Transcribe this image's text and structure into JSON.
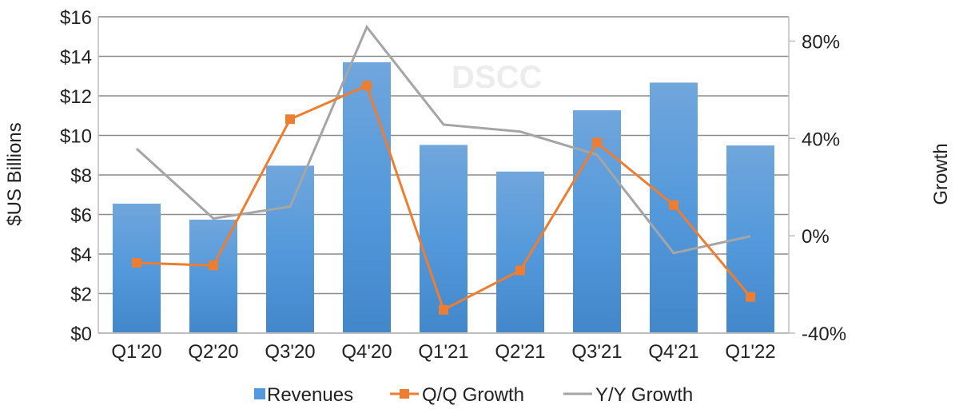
{
  "chart_data": {
    "type": "bar+line",
    "categories": [
      "Q1'20",
      "Q2'20",
      "Q3'20",
      "Q4'20",
      "Q1'21",
      "Q2'21",
      "Q3'21",
      "Q4'21",
      "Q1'22"
    ],
    "series": [
      {
        "name": "Revenues",
        "type": "bar",
        "axis": "left",
        "color": "#4a90d6",
        "values": [
          6.55,
          5.74,
          8.47,
          13.7,
          9.52,
          8.17,
          11.27,
          12.67,
          9.49
        ]
      },
      {
        "name": "Q/Q Growth",
        "type": "line",
        "axis": "right",
        "color": "#ed7d31",
        "marker": "square",
        "values": [
          -11.1,
          -12.2,
          47.9,
          61.7,
          -30.4,
          -14.2,
          38.3,
          12.6,
          -25.1
        ]
      },
      {
        "name": "Y/Y Growth",
        "type": "line",
        "axis": "right",
        "color": "#a5a5a5",
        "values": [
          35.8,
          7.1,
          12.0,
          85.8,
          45.7,
          42.8,
          33.3,
          -7.1,
          -0.2
        ]
      }
    ],
    "ylabel": "$US Billions",
    "y2label": "Growth",
    "ylim": [
      0,
      16
    ],
    "y2lim": [
      -40,
      90
    ],
    "yticks": [
      "$0",
      "$2",
      "$4",
      "$6",
      "$8",
      "$10",
      "$12",
      "$14",
      "$16"
    ],
    "y2ticks": [
      "-40%",
      "0%",
      "40%",
      "80%"
    ],
    "grid": true,
    "legend": "bottom",
    "watermark": "DSCC"
  }
}
